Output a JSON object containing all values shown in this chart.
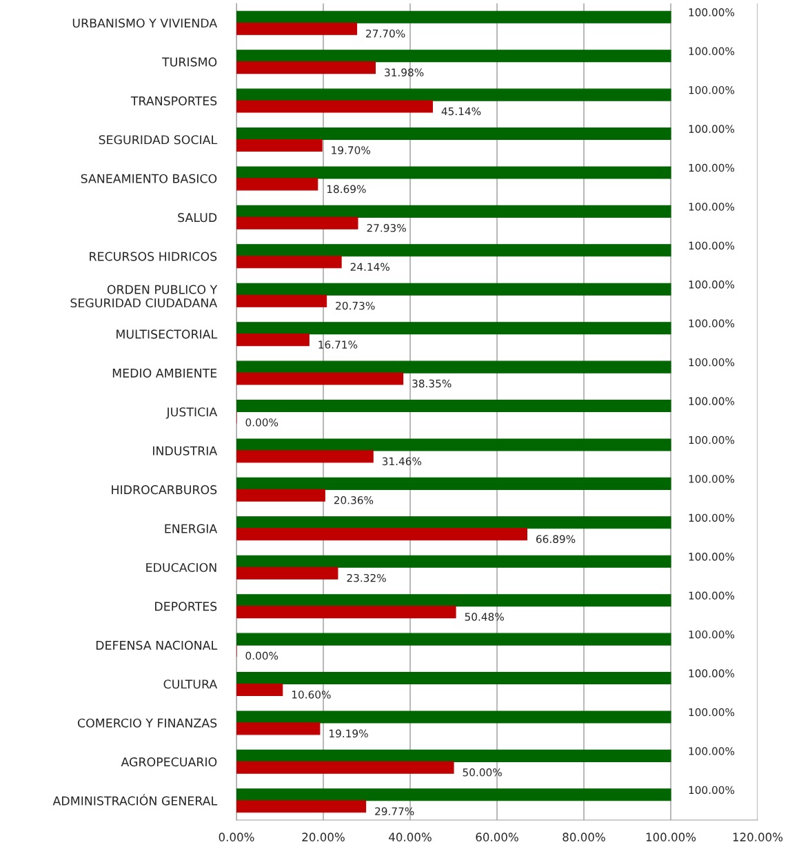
{
  "chart_data": {
    "type": "bar",
    "orientation": "horizontal",
    "categories": [
      "URBANISMO Y VIVIENDA",
      "TURISMO",
      "TRANSPORTES",
      "SEGURIDAD SOCIAL",
      "SANEAMIENTO BASICO",
      "SALUD",
      "RECURSOS HIDRICOS",
      "ORDEN PUBLICO Y SEGURIDAD CIUDADANA",
      "MULTISECTORIAL",
      "MEDIO AMBIENTE",
      "JUSTICIA",
      "INDUSTRIA",
      "HIDROCARBUROS",
      "ENERGIA",
      "EDUCACION",
      "DEPORTES",
      "DEFENSA NACIONAL",
      "CULTURA",
      "COMERCIO Y FINANZAS",
      "AGROPECUARIO",
      "ADMINISTRACIÓN GENERAL"
    ],
    "series": [
      {
        "color": "#006600",
        "values": [
          100,
          100,
          100,
          100,
          100,
          100,
          100,
          100,
          100,
          100,
          100,
          100,
          100,
          100,
          100,
          100,
          100,
          100,
          100,
          100,
          100
        ],
        "value_labels": [
          "100.00%",
          "100.00%",
          "100.00%",
          "100.00%",
          "100.00%",
          "100.00%",
          "100.00%",
          "100.00%",
          "100.00%",
          "100.00%",
          "100.00%",
          "100.00%",
          "100.00%",
          "100.00%",
          "100.00%",
          "100.00%",
          "100.00%",
          "100.00%",
          "100.00%",
          "100.00%",
          "100.00%"
        ]
      },
      {
        "color": "#c00000",
        "values": [
          27.7,
          31.98,
          45.14,
          19.7,
          18.69,
          27.93,
          24.14,
          20.73,
          16.71,
          38.35,
          0.0,
          31.46,
          20.36,
          66.89,
          23.32,
          50.48,
          0.0,
          10.6,
          19.19,
          50.0,
          29.77
        ],
        "value_labels": [
          "27.70%",
          "31.98%",
          "45.14%",
          "19.70%",
          "18.69%",
          "27.93%",
          "24.14%",
          "20.73%",
          "16.71%",
          "38.35%",
          "0.00%",
          "31.46%",
          "20.36%",
          "66.89%",
          "23.32%",
          "50.48%",
          "0.00%",
          "10.60%",
          "19.19%",
          "50.00%",
          "29.77%"
        ]
      }
    ],
    "xlim": [
      0,
      120
    ],
    "xticks": [
      {
        "value": 0,
        "label": "0.00%"
      },
      {
        "value": 20,
        "label": "20.00%"
      },
      {
        "value": 40,
        "label": "40.00%"
      },
      {
        "value": 60,
        "label": "60.00%"
      },
      {
        "value": 80,
        "label": "80.00%"
      },
      {
        "value": 100,
        "label": "100.00%"
      },
      {
        "value": 120,
        "label": "120.00%"
      }
    ],
    "grid": "x",
    "legend": false
  }
}
